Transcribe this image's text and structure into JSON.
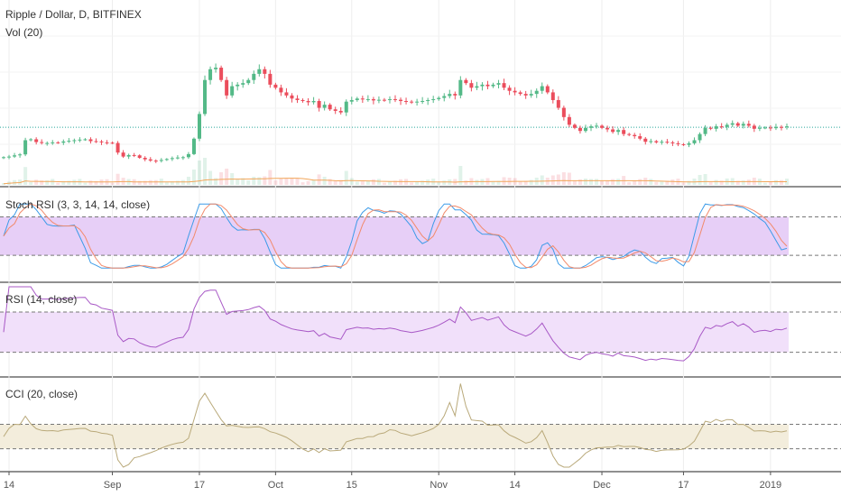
{
  "chart_data": {
    "type": "line",
    "symbol_title": "Ripple / Dollar, D, BITFINEX",
    "volume_label": "Vol (20)",
    "colors": {
      "up": "#53b987",
      "down": "#eb4d5c",
      "stoch_k": "#3c9be8",
      "stoch_d": "#f28a6b",
      "stoch_band": "#e7cff7",
      "rsi_line": "#a858c6",
      "rsi_band": "#f1e0fa",
      "cci_line": "#b9a97a",
      "cci_band": "#f3eddc",
      "last_price": "#26a69a",
      "volume_ma": "#f2a65a"
    },
    "x_ticks": [
      "14",
      "Sep",
      "17",
      "Oct",
      "15",
      "Nov",
      "14",
      "Dec",
      "17",
      "2019"
    ],
    "x_tick_index": [
      0,
      19,
      35,
      49,
      63,
      79,
      93,
      109,
      124,
      140
    ],
    "price": {
      "close": [
        0.27,
        0.272,
        0.276,
        0.279,
        0.325,
        0.328,
        0.319,
        0.316,
        0.316,
        0.318,
        0.317,
        0.321,
        0.323,
        0.325,
        0.327,
        0.328,
        0.322,
        0.321,
        0.318,
        0.317,
        0.316,
        0.285,
        0.272,
        0.277,
        0.276,
        0.268,
        0.263,
        0.259,
        0.258,
        0.261,
        0.264,
        0.267,
        0.269,
        0.27,
        0.28,
        0.33,
        0.41,
        0.52,
        0.555,
        0.56,
        0.52,
        0.47,
        0.5,
        0.505,
        0.51,
        0.52,
        0.54,
        0.555,
        0.54,
        0.505,
        0.495,
        0.48,
        0.47,
        0.46,
        0.455,
        0.452,
        0.448,
        0.452,
        0.43,
        0.44,
        0.425,
        0.42,
        0.415,
        0.45,
        0.455,
        0.46,
        0.457,
        0.458,
        0.454,
        0.456,
        0.455,
        0.458,
        0.456,
        0.452,
        0.45,
        0.448,
        0.45,
        0.452,
        0.455,
        0.458,
        0.462,
        0.468,
        0.475,
        0.47,
        0.52,
        0.51,
        0.495,
        0.5,
        0.505,
        0.5,
        0.505,
        0.51,
        0.495,
        0.485,
        0.48,
        0.475,
        0.47,
        0.475,
        0.485,
        0.5,
        0.48,
        0.455,
        0.43,
        0.4,
        0.375,
        0.365,
        0.355,
        0.365,
        0.37,
        0.372,
        0.365,
        0.36,
        0.352,
        0.358,
        0.345,
        0.342,
        0.338,
        0.33,
        0.32,
        0.322,
        0.318,
        0.32,
        0.318,
        0.315,
        0.312,
        0.31,
        0.315,
        0.325,
        0.345,
        0.365,
        0.362,
        0.37,
        0.368,
        0.375,
        0.38,
        0.372,
        0.378,
        0.372,
        0.362,
        0.365,
        0.366,
        0.364,
        0.368,
        0.367,
        0.37
      ],
      "last": 0.367,
      "ylim": [
        0.23,
        0.75
      ]
    },
    "stoch_rsi": {
      "title": "Stoch RSI (3, 3, 14, 14, close)",
      "upper": 80,
      "lower": 20,
      "ylim": [
        -15,
        120
      ],
      "k": [],
      "d": []
    },
    "rsi": {
      "title": "RSI (14, close)",
      "upper": 70,
      "lower": 30,
      "ylim": [
        10,
        95
      ]
    },
    "cci": {
      "title": "CCI (20, close)",
      "upper": 100,
      "lower": -100,
      "ylim": [
        -250,
        450
      ]
    }
  }
}
